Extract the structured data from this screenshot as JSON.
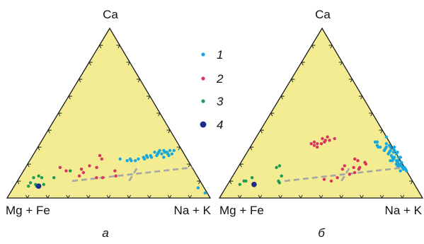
{
  "colors": {
    "background": "#ffffff",
    "triangle_fill": "#f3ec92",
    "triangle_stroke": "#1a1a1a",
    "divider": "#a6a6a6"
  },
  "legend": [
    {
      "label": "1",
      "color": "#1aa8dc",
      "size": "small"
    },
    {
      "label": "2",
      "color": "#d6365f",
      "size": "small"
    },
    {
      "label": "3",
      "color": "#1e9a55",
      "size": "small"
    },
    {
      "label": "4",
      "color": "#1d2a8c",
      "size": "large"
    }
  ],
  "chart_data": [
    {
      "type": "scatter",
      "panel_label": "а",
      "corner_labels": {
        "top": "Ca",
        "left": "Mg + Fe",
        "right": "Na + K"
      },
      "ticks_per_side": 10,
      "dividers": [
        {
          "from": [
            0.1,
            0.27
          ],
          "to": [
            0.18,
            0.82
          ]
        },
        {
          "from": [
            0.1,
            0.55
          ],
          "to": [
            0.18,
            0.55
          ]
        }
      ],
      "series": [
        {
          "group": "1",
          "points": [
            [
              0.26,
              0.68
            ],
            [
              0.28,
              0.66
            ],
            [
              0.27,
              0.65
            ],
            [
              0.25,
              0.67
            ],
            [
              0.28,
              0.68
            ],
            [
              0.27,
              0.64
            ],
            [
              0.26,
              0.66
            ],
            [
              0.28,
              0.63
            ],
            [
              0.27,
              0.61
            ],
            [
              0.26,
              0.63
            ],
            [
              0.24,
              0.65
            ],
            [
              0.28,
              0.61
            ],
            [
              0.27,
              0.59
            ],
            [
              0.26,
              0.61
            ],
            [
              0.25,
              0.61
            ],
            [
              0.24,
              0.59
            ],
            [
              0.25,
              0.58
            ],
            [
              0.24,
              0.57
            ],
            [
              0.23,
              0.56
            ],
            [
              0.25,
              0.56
            ],
            [
              0.24,
              0.55
            ],
            [
              0.23,
              0.53
            ],
            [
              0.22,
              0.52
            ],
            [
              0.22,
              0.5
            ],
            [
              0.23,
              0.49
            ],
            [
              0.22,
              0.48
            ],
            [
              0.23,
              0.44
            ],
            [
              0.03,
              0.96
            ],
            [
              0.06,
              0.91
            ]
          ]
        },
        {
          "group": "2",
          "points": [
            [
              0.23,
              0.35
            ],
            [
              0.25,
              0.33
            ],
            [
              0.18,
              0.35
            ],
            [
              0.12,
              0.41
            ],
            [
              0.16,
              0.45
            ],
            [
              0.13,
              0.47
            ],
            [
              0.12,
              0.38
            ],
            [
              0.13,
              0.29
            ],
            [
              0.15,
              0.3
            ],
            [
              0.18,
              0.17
            ],
            [
              0.17,
              0.28
            ],
            [
              0.19,
              0.31
            ],
            [
              0.16,
              0.21
            ]
          ]
        },
        {
          "group": "3",
          "points": [
            [
              0.12,
              0.17
            ],
            [
              0.16,
              0.23
            ],
            [
              0.13,
              0.09
            ],
            [
              0.12,
              0.07
            ],
            [
              0.12,
              0.11
            ],
            [
              0.08,
              0.1
            ],
            [
              0.07,
              0.07
            ],
            [
              0.09,
              0.07
            ],
            [
              0.08,
              0.14
            ],
            [
              0.07,
              0.11
            ]
          ]
        },
        {
          "group": "4",
          "points": [
            [
              0.07,
              0.12
            ]
          ]
        }
      ]
    },
    {
      "type": "scatter",
      "panel_label": "б",
      "corner_labels": {
        "top": "Ca",
        "left": "Mg + Fe",
        "right": "Na + K"
      },
      "ticks_per_side": 10,
      "dividers": [
        {
          "from": [
            0.1,
            0.27
          ],
          "to": [
            0.18,
            0.82
          ]
        },
        {
          "from": [
            0.1,
            0.55
          ],
          "to": [
            0.18,
            0.55
          ]
        }
      ],
      "series": [
        {
          "group": "1",
          "points": [
            [
              0.36,
              0.64
            ],
            [
              0.33,
              0.61
            ],
            [
              0.32,
              0.66
            ],
            [
              0.3,
              0.67
            ],
            [
              0.31,
              0.62
            ],
            [
              0.29,
              0.67
            ],
            [
              0.3,
              0.69
            ],
            [
              0.31,
              0.68
            ],
            [
              0.3,
              0.63
            ],
            [
              0.3,
              0.64
            ],
            [
              0.28,
              0.67
            ],
            [
              0.28,
              0.7
            ],
            [
              0.3,
              0.71
            ],
            [
              0.27,
              0.72
            ],
            [
              0.29,
              0.71
            ],
            [
              0.26,
              0.7
            ],
            [
              0.24,
              0.74
            ],
            [
              0.26,
              0.74
            ],
            [
              0.28,
              0.72
            ],
            [
              0.24,
              0.73
            ],
            [
              0.23,
              0.74
            ],
            [
              0.24,
              0.76
            ],
            [
              0.22,
              0.76
            ],
            [
              0.24,
              0.77
            ],
            [
              0.2,
              0.78
            ],
            [
              0.2,
              0.77
            ],
            [
              0.2,
              0.79
            ],
            [
              0.22,
              0.77
            ],
            [
              0.22,
              0.74
            ],
            [
              0.21,
              0.77
            ],
            [
              0.19,
              0.78
            ],
            [
              0.19,
              0.8
            ],
            [
              0.18,
              0.81
            ],
            [
              0.21,
              0.79
            ],
            [
              0.18,
              0.82
            ],
            [
              0.19,
              0.79
            ],
            [
              0.17,
              0.82
            ],
            [
              0.16,
              0.84
            ],
            [
              0.17,
              0.83
            ],
            [
              0.25,
              0.72
            ],
            [
              0.27,
              0.7
            ],
            [
              0.22,
              0.73
            ],
            [
              0.16,
              0.81
            ],
            [
              0.2,
              0.77
            ],
            [
              0.27,
              0.74
            ],
            [
              0.33,
              0.6
            ]
          ]
        },
        {
          "group": "2",
          "points": [
            [
              0.35,
              0.39
            ],
            [
              0.36,
              0.35
            ],
            [
              0.34,
              0.37
            ],
            [
              0.34,
              0.35
            ],
            [
              0.32,
              0.34
            ],
            [
              0.33,
              0.35
            ],
            [
              0.31,
              0.31
            ],
            [
              0.32,
              0.32
            ],
            [
              0.3,
              0.33
            ],
            [
              0.33,
              0.3
            ],
            [
              0.35,
              0.33
            ],
            [
              0.32,
              0.29
            ],
            [
              0.19,
              0.52
            ],
            [
              0.23,
              0.55
            ],
            [
              0.22,
              0.57
            ],
            [
              0.21,
              0.61
            ],
            [
              0.2,
              0.62
            ],
            [
              0.17,
              0.6
            ],
            [
              0.18,
              0.6
            ],
            [
              0.15,
              0.59
            ],
            [
              0.14,
              0.57
            ],
            [
              0.12,
              0.52
            ],
            [
              0.11,
              0.46
            ],
            [
              0.1,
              0.5
            ],
            [
              0.17,
              0.52
            ],
            [
              0.18,
              0.57
            ]
          ]
        },
        {
          "group": "3",
          "points": [
            [
              0.18,
              0.19
            ],
            [
              0.19,
              0.2
            ],
            [
              0.13,
              0.24
            ],
            [
              0.1,
              0.24
            ],
            [
              0.09,
              0.25
            ],
            [
              0.12,
              0.1
            ],
            [
              0.1,
              0.08
            ],
            [
              0.1,
              0.07
            ],
            [
              0.08,
              0.06
            ]
          ]
        },
        {
          "group": "4",
          "points": [
            [
              0.08,
              0.13
            ]
          ]
        }
      ]
    }
  ]
}
